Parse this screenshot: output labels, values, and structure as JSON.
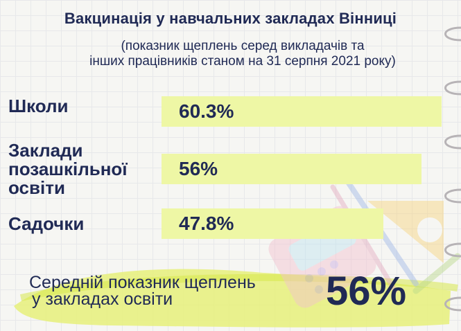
{
  "title": "Вакцинація у навчальних закладах Вінниці",
  "subtitle_line1": "(показник щеплень серед викладачів та",
  "subtitle_line2": "інших працівників станом на 31 серпня 2021 року)",
  "chart_data": {
    "type": "bar",
    "orientation": "horizontal",
    "title": "Вакцинація у навчальних закладах Вінниці",
    "categories": [
      {
        "lines": [
          "Школи"
        ]
      },
      {
        "lines": [
          "Заклади",
          "позашкільної",
          "освіти"
        ]
      },
      {
        "lines": [
          "Садочки"
        ]
      }
    ],
    "values": [
      60.3,
      56,
      47.8
    ],
    "value_labels": [
      "60.3%",
      "56%",
      "47.8%"
    ],
    "unit": "%",
    "bar_color": "#eef7a5"
  },
  "summary": {
    "line1": "Середній показник щеплень",
    "line2": "у закладах освіти",
    "value": "56%"
  },
  "colors": {
    "text": "#202a55",
    "bar": "#eef7a5",
    "highlight": "#dbeb45"
  }
}
